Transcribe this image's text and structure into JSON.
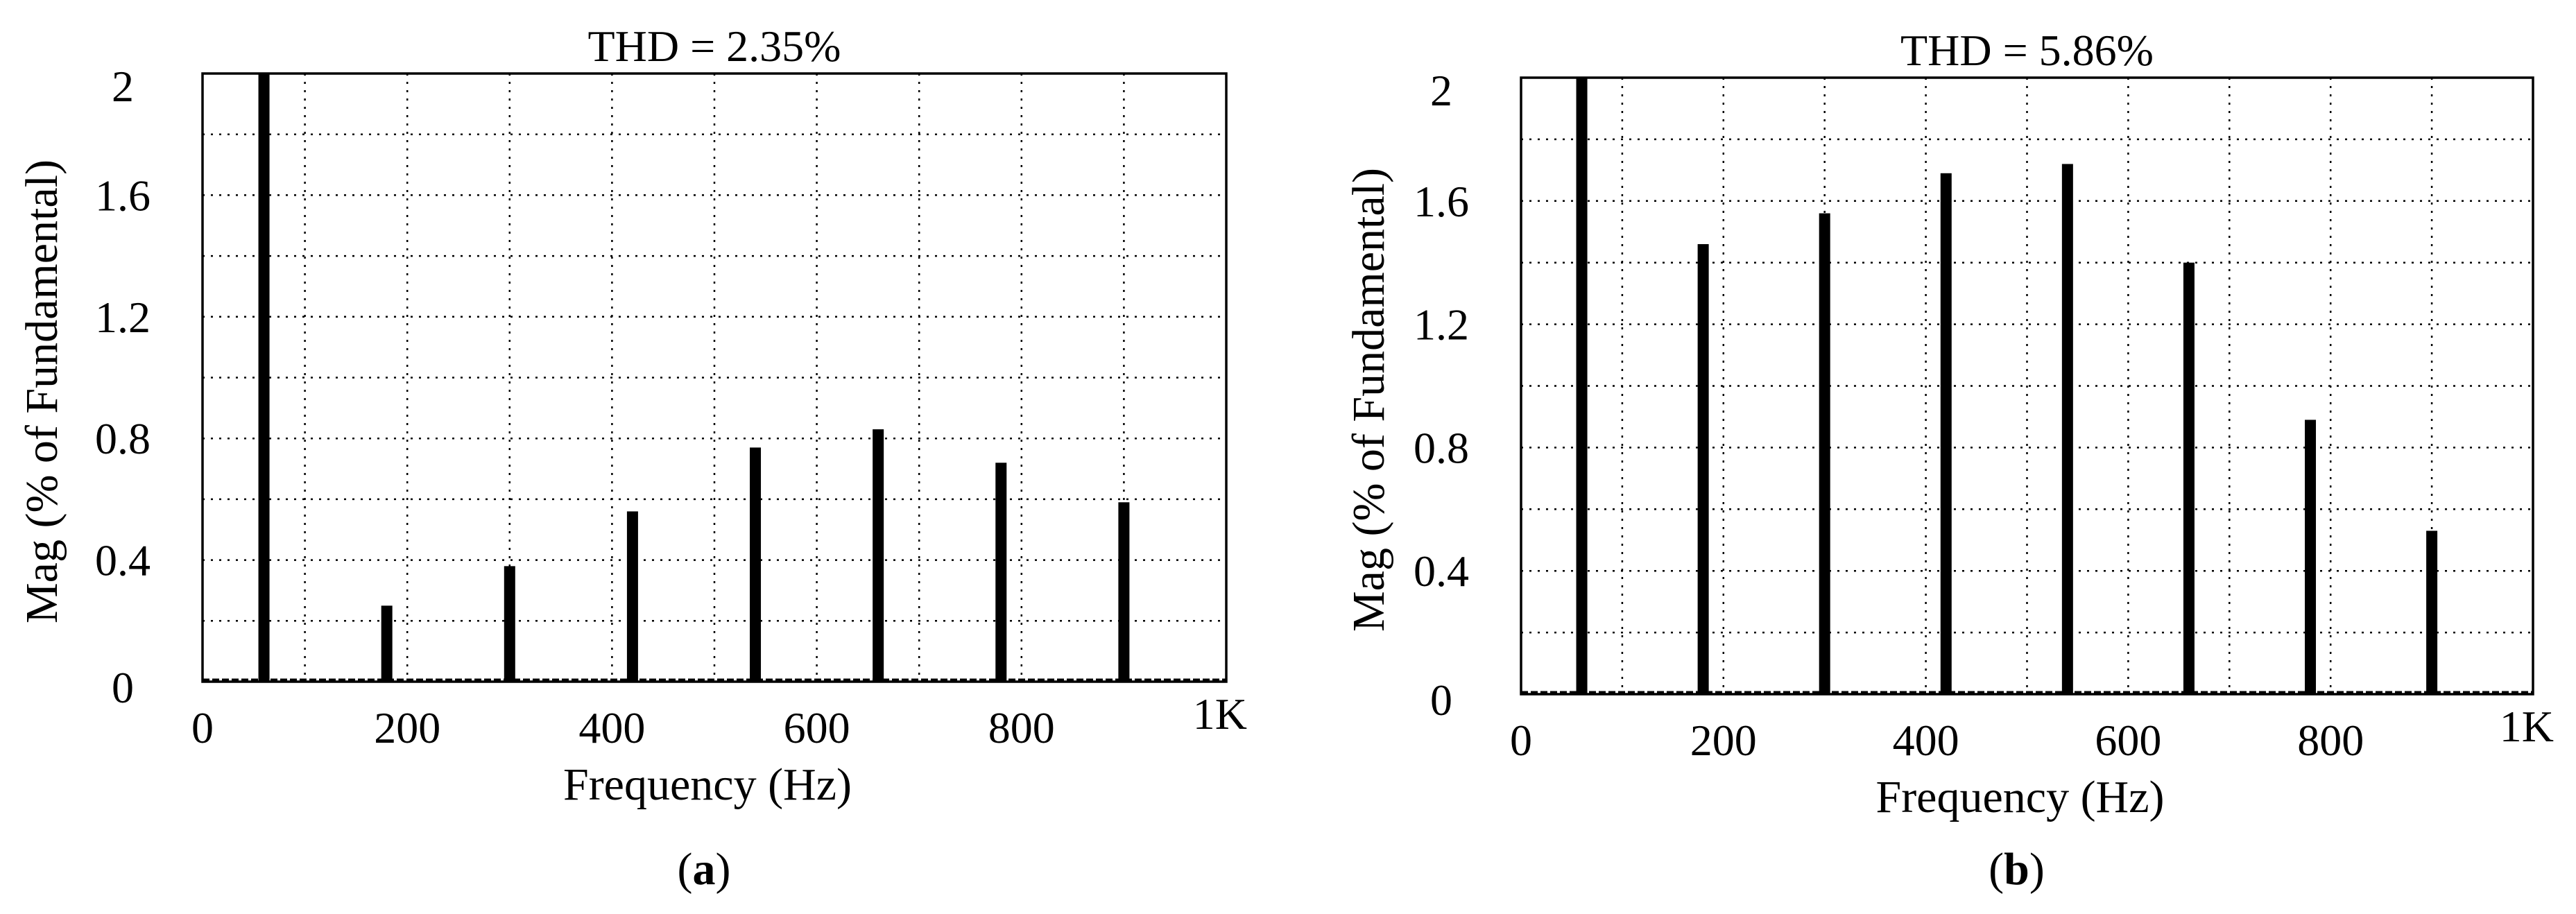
{
  "chart_data": [
    {
      "type": "bar",
      "panel_label": "(a)",
      "title": "THD = 2.35%",
      "xlabel": "Frequency (Hz)",
      "ylabel": "Mag (% of Fundamental)",
      "xlim": [
        0,
        1000
      ],
      "ylim": [
        0,
        2
      ],
      "x_tick_values": [
        0,
        200,
        400,
        600,
        800,
        1000
      ],
      "x_tick_labels": [
        "0",
        "200",
        "400",
        "600",
        "800",
        "1K"
      ],
      "y_tick_values": [
        0,
        0.4,
        0.8,
        1.2,
        1.6,
        2
      ],
      "y_tick_labels": [
        "0",
        "0.4",
        "0.8",
        "1.2",
        "1.6",
        "2"
      ],
      "x_grid_minor_step": 100,
      "y_grid_minor_step": 0.2,
      "grid": true,
      "x": [
        60,
        180,
        300,
        420,
        540,
        660,
        780,
        900
      ],
      "values": [
        2.0,
        0.25,
        0.38,
        0.56,
        0.77,
        0.83,
        0.72,
        0.59
      ],
      "bar_color": "#000000"
    },
    {
      "type": "bar",
      "panel_label": "(b)",
      "title": "THD = 5.86%",
      "xlabel": "Frequency (Hz)",
      "ylabel": "Mag (% of Fundamental)",
      "xlim": [
        0,
        1000
      ],
      "ylim": [
        0,
        2
      ],
      "x_tick_values": [
        0,
        200,
        400,
        600,
        800,
        1000
      ],
      "x_tick_labels": [
        "0",
        "200",
        "400",
        "600",
        "800",
        "1K"
      ],
      "y_tick_values": [
        0,
        0.4,
        0.8,
        1.2,
        1.6,
        2
      ],
      "y_tick_labels": [
        "0",
        "0.4",
        "0.8",
        "1.2",
        "1.6",
        "2"
      ],
      "x_grid_minor_step": 100,
      "y_grid_minor_step": 0.2,
      "grid": true,
      "x": [
        60,
        180,
        300,
        420,
        540,
        660,
        780,
        900
      ],
      "values": [
        2.0,
        1.46,
        1.56,
        1.69,
        1.72,
        1.4,
        0.89,
        0.53
      ],
      "bar_color": "#000000"
    }
  ]
}
